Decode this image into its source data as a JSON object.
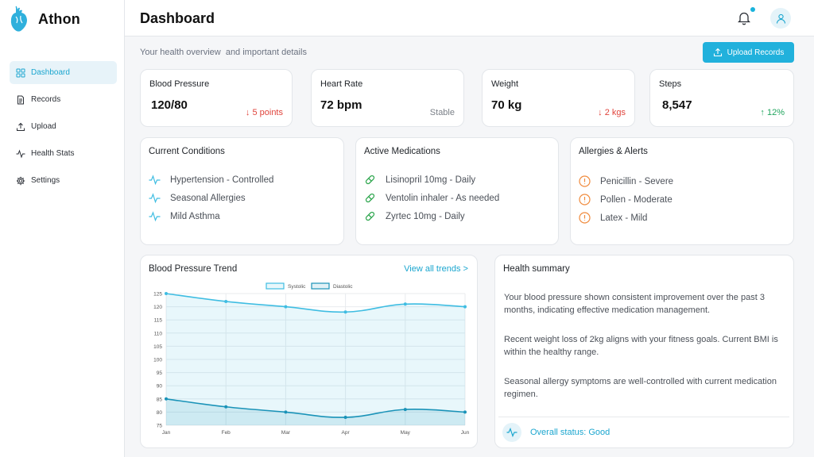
{
  "app": {
    "name": "Athon",
    "accent": "#21b1dc"
  },
  "sidebar": {
    "items": [
      {
        "label": "Dashboard",
        "icon": "grid-icon",
        "active": true
      },
      {
        "label": "Records",
        "icon": "document-icon",
        "active": false
      },
      {
        "label": "Upload",
        "icon": "upload-icon",
        "active": false
      },
      {
        "label": "Health Stats",
        "icon": "activity-icon",
        "active": false
      },
      {
        "label": "Settings",
        "icon": "gear-icon",
        "active": false
      }
    ]
  },
  "header": {
    "title": "Dashboard",
    "notification_icon": "bell-icon",
    "avatar_icon": "user-icon"
  },
  "main": {
    "subtitle": "Your health overview  and important details",
    "upload_button": "Upload Records",
    "stats": [
      {
        "label": "Blood Pressure",
        "value": "120/80",
        "change": "↓ 5 points",
        "trend": "down"
      },
      {
        "label": "Heart Rate",
        "value": "72 bpm",
        "change": "Stable",
        "trend": "neutral"
      },
      {
        "label": "Weight",
        "value": "70 kg",
        "change": "↓ 2 kgs",
        "trend": "down"
      },
      {
        "label": "Steps",
        "value": "8,547",
        "change": "↑ 12%",
        "trend": "up"
      }
    ],
    "conditions": {
      "title": "Current Conditions",
      "items": [
        "Hypertension - Controlled",
        "Seasonal Allergies",
        "Mild Asthma"
      ]
    },
    "medications": {
      "title": "Active Medications",
      "items": [
        "Lisinopril 10mg - Daily",
        "Ventolin inhaler - As needed",
        "Zyrtec 10mg - Daily"
      ]
    },
    "allergies": {
      "title": "Allergies & Alerts",
      "items": [
        "Penicillin - Severe",
        "Pollen - Moderate",
        "Latex - Mild"
      ]
    },
    "trend_card": {
      "title": "Blood Pressure Trend",
      "link": "View all trends >"
    },
    "summary": {
      "title": "Health summary",
      "paragraphs": [
        "Your blood pressure shown consistent improvement over the past 3 months, indicating effective medication management.",
        "Recent weight loss of 2kg aligns with your fitness goals. Current BMI is within the healthy range.",
        "Seasonal allergy symptoms are well-controlled with current medication regimen."
      ],
      "status": "Overall status: Good"
    }
  },
  "chart_data": {
    "type": "line",
    "categories": [
      "Jan",
      "Feb",
      "Mar",
      "Apr",
      "May",
      "Jun"
    ],
    "series": [
      {
        "name": "Systolic",
        "values": [
          125,
          122,
          120,
          118,
          121,
          120
        ],
        "color": "#3fbde2"
      },
      {
        "name": "Diastolic",
        "values": [
          85,
          82,
          80,
          78,
          81,
          80
        ],
        "color": "#1a93b8"
      }
    ],
    "ylim": [
      75,
      125
    ],
    "yticks": [
      75,
      80,
      85,
      90,
      95,
      100,
      105,
      110,
      115,
      120,
      125
    ],
    "grid": true,
    "legend": "top-center",
    "fill": true
  }
}
